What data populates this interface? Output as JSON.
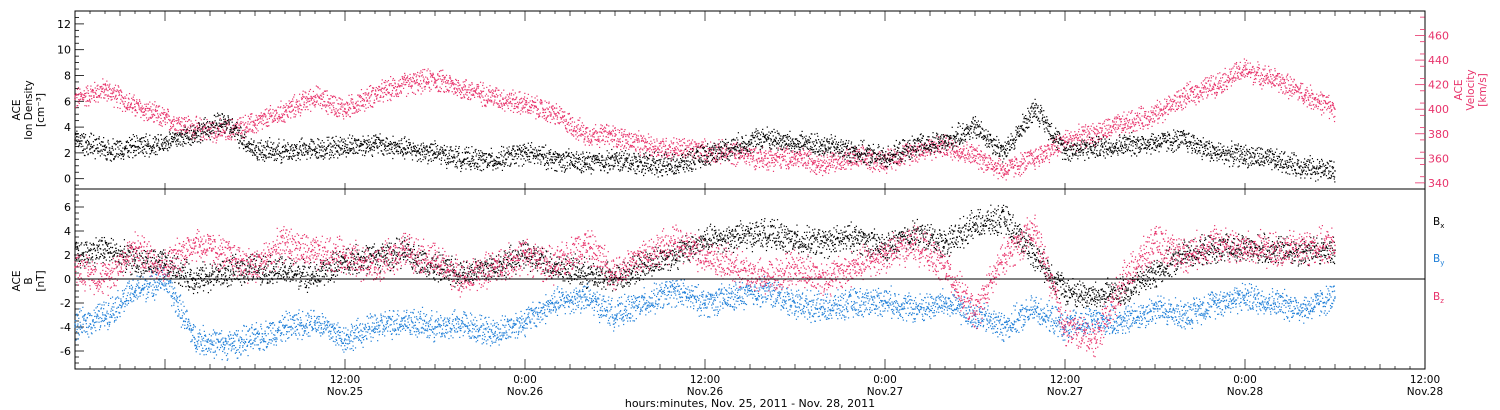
{
  "colors": {
    "black": "#000000",
    "red": "#e8336b",
    "blue": "#1f7fd8"
  },
  "xaxis": {
    "label": "hours:minutes, Nov. 25, 2011 - Nov. 28, 2011",
    "range_hours": [
      -6,
      84
    ],
    "ticks": [
      {
        "hour": 12,
        "time": "12:00",
        "date": "Nov.25"
      },
      {
        "hour": 24,
        "time": "0:00",
        "date": "Nov.26"
      },
      {
        "hour": 36,
        "time": "12:00",
        "date": "Nov.26"
      },
      {
        "hour": 48,
        "time": "0:00",
        "date": "Nov.27"
      },
      {
        "hour": 60,
        "time": "12:00",
        "date": "Nov.27"
      },
      {
        "hour": 72,
        "time": "0:00",
        "date": "Nov.28"
      },
      {
        "hour": 84,
        "time": "12:00",
        "date": "Nov.28"
      }
    ]
  },
  "chart_data": [
    {
      "type": "scatter",
      "title": "",
      "xlabel": "hours:minutes, Nov. 25, 2011 - Nov. 28, 2011",
      "ylabel_lines": [
        "ACE",
        "Ion Density",
        "[cm⁻³]"
      ],
      "ylim": [
        -0.8,
        13
      ],
      "yticks": [
        0,
        2,
        4,
        6,
        8,
        10,
        12
      ],
      "y2label_lines": [
        "ACE",
        "Velocity",
        "[km/s]"
      ],
      "y2lim": [
        335,
        480
      ],
      "y2ticks": [
        340,
        360,
        380,
        400,
        420,
        440,
        460
      ],
      "x_unit": "hours from 0:00 Nov. 25, 2011",
      "series": [
        {
          "axis": "left",
          "color": "#000000",
          "x": [
            -6,
            -4,
            -2,
            0,
            2,
            4,
            6,
            8,
            10,
            12,
            14,
            16,
            18,
            20,
            22,
            24,
            26,
            28,
            30,
            32,
            34,
            36,
            38,
            40,
            42,
            44,
            46,
            48,
            50,
            52,
            54,
            56,
            58,
            60,
            62,
            64,
            66,
            68,
            70,
            72,
            74,
            76,
            78
          ],
          "values": [
            3.0,
            2.2,
            2.5,
            2.8,
            3.5,
            4.4,
            2.2,
            2.1,
            2.3,
            2.5,
            2.7,
            2.3,
            2.0,
            1.5,
            1.4,
            2.0,
            1.5,
            1.2,
            1.4,
            1.2,
            1.0,
            1.8,
            2.5,
            3.2,
            2.7,
            2.6,
            2.1,
            1.6,
            2.5,
            2.8,
            4.0,
            2.0,
            5.5,
            2.2,
            2.4,
            2.6,
            2.8,
            3.0,
            2.0,
            1.8,
            1.4,
            0.9,
            0.6
          ]
        },
        {
          "axis": "right",
          "color": "#e8336b",
          "x": [
            -6,
            -4,
            -2,
            0,
            2,
            4,
            6,
            8,
            10,
            12,
            14,
            16,
            18,
            20,
            22,
            24,
            26,
            28,
            30,
            32,
            34,
            36,
            38,
            40,
            42,
            44,
            46,
            48,
            50,
            52,
            54,
            56,
            58,
            60,
            62,
            64,
            66,
            68,
            70,
            72,
            74,
            76,
            78
          ],
          "values": [
            408,
            416,
            402,
            392,
            384,
            382,
            388,
            398,
            410,
            400,
            412,
            420,
            424,
            416,
            410,
            404,
            396,
            380,
            378,
            370,
            368,
            366,
            364,
            360,
            360,
            356,
            360,
            358,
            366,
            370,
            362,
            350,
            360,
            374,
            380,
            388,
            396,
            410,
            420,
            432,
            424,
            412,
            400
          ]
        }
      ]
    },
    {
      "type": "scatter",
      "title": "",
      "ylabel_lines": [
        "ACE",
        "B",
        "[nT]"
      ],
      "ylim": [
        -7.5,
        7.5
      ],
      "yticks": [
        -6,
        -4,
        -2,
        0,
        2,
        4,
        6
      ],
      "zero_line": true,
      "x_unit": "hours from 0:00 Nov. 25, 2011",
      "series": [
        {
          "name": "Bx",
          "color": "#000000",
          "x": [
            -6,
            -4,
            -2,
            0,
            2,
            4,
            6,
            8,
            10,
            12,
            14,
            16,
            18,
            20,
            22,
            24,
            26,
            28,
            30,
            32,
            34,
            36,
            38,
            40,
            42,
            44,
            46,
            48,
            50,
            52,
            54,
            56,
            58,
            60,
            62,
            64,
            66,
            68,
            70,
            72,
            74,
            76,
            78
          ],
          "values": [
            2.0,
            2.5,
            1.5,
            1.2,
            0.0,
            0.5,
            1.0,
            0.6,
            0.2,
            1.5,
            1.8,
            2.2,
            1.0,
            0.5,
            1.0,
            2.0,
            1.0,
            0.5,
            0.0,
            1.2,
            2.0,
            3.2,
            3.5,
            3.8,
            3.2,
            3.0,
            3.5,
            2.5,
            3.8,
            3.0,
            4.5,
            5.0,
            2.0,
            -1.0,
            -1.5,
            -1.0,
            0.5,
            2.0,
            2.5,
            2.5,
            2.4,
            2.3,
            2.4
          ]
        },
        {
          "name": "By",
          "color": "#1f7fd8",
          "x": [
            -6,
            -4,
            -2,
            0,
            2,
            4,
            6,
            8,
            10,
            12,
            14,
            16,
            18,
            20,
            22,
            24,
            26,
            28,
            30,
            32,
            34,
            36,
            38,
            40,
            42,
            44,
            46,
            48,
            50,
            52,
            54,
            56,
            58,
            60,
            62,
            64,
            66,
            68,
            70,
            72,
            74,
            76,
            78
          ],
          "values": [
            -4.0,
            -3.0,
            -1.0,
            0.0,
            -5.0,
            -5.5,
            -5.0,
            -4.0,
            -3.5,
            -5.0,
            -4.0,
            -3.5,
            -4.0,
            -3.8,
            -4.5,
            -3.5,
            -2.0,
            -1.5,
            -3.0,
            -2.0,
            -1.0,
            -2.0,
            -1.5,
            -1.0,
            -2.0,
            -2.5,
            -2.0,
            -1.8,
            -2.5,
            -2.0,
            -3.0,
            -4.0,
            -2.5,
            -4.0,
            -3.5,
            -3.5,
            -2.5,
            -3.0,
            -2.0,
            -1.5,
            -2.0,
            -2.5,
            -1.5
          ]
        },
        {
          "name": "Bz",
          "color": "#e8336b",
          "x": [
            -6,
            -4,
            -2,
            0,
            2,
            4,
            6,
            8,
            10,
            12,
            14,
            16,
            18,
            20,
            22,
            24,
            26,
            28,
            30,
            32,
            34,
            36,
            38,
            40,
            42,
            44,
            46,
            48,
            50,
            52,
            54,
            56,
            58,
            60,
            62,
            64,
            66,
            68,
            70,
            72,
            74,
            76,
            78
          ],
          "values": [
            1.0,
            0.0,
            2.5,
            1.0,
            3.0,
            2.0,
            1.0,
            3.0,
            2.0,
            2.0,
            1.0,
            2.5,
            1.5,
            0.0,
            1.0,
            2.0,
            1.0,
            3.0,
            0.5,
            2.0,
            3.0,
            2.0,
            1.0,
            0.0,
            1.0,
            0.0,
            1.0,
            2.0,
            3.0,
            1.0,
            -3.0,
            2.0,
            4.0,
            -4.0,
            -5.0,
            0.0,
            3.0,
            2.0,
            3.0,
            2.5,
            2.4,
            2.6,
            2.8
          ]
        }
      ],
      "legend": {
        "placement": "right",
        "entries": [
          {
            "base": "B",
            "sub": "x",
            "color": "#000000"
          },
          {
            "base": "B",
            "sub": "y",
            "color": "#1f7fd8"
          },
          {
            "base": "B",
            "sub": "z",
            "color": "#e8336b"
          }
        ]
      }
    }
  ]
}
